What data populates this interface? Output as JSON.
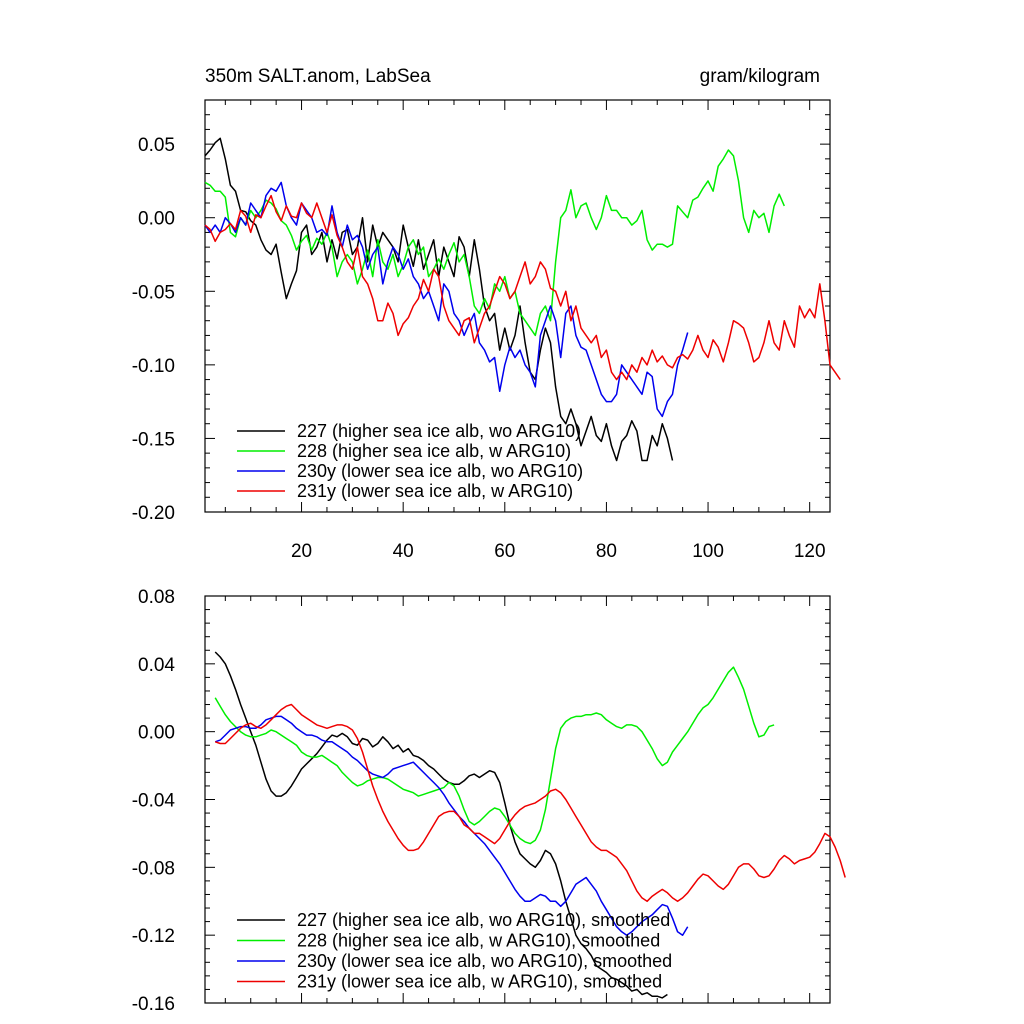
{
  "colors": {
    "227": "#000000",
    "228": "#00ee00",
    "230y": "#0000ee",
    "231y": "#ee0000"
  },
  "chart_data": [
    {
      "type": "line",
      "title_left": "350m SALT.anom, LabSea",
      "title_right": "gram/kilogram",
      "xlim": [
        1,
        124
      ],
      "ylim": [
        -0.2,
        0.08
      ],
      "xticks": [
        20,
        40,
        60,
        80,
        100,
        120
      ],
      "xticklabels": [
        "20",
        "40",
        "60",
        "80",
        "100",
        "120"
      ],
      "yticks": [
        -0.2,
        -0.15,
        -0.1,
        -0.05,
        0.0,
        0.05
      ],
      "yticklabels": [
        "-0.20",
        "-0.15",
        "-0.10",
        "-0.05",
        "0.00",
        "0.05"
      ],
      "legend": [
        "227 (higher sea ice alb, wo ARG10)",
        "228 (higher sea ice alb, w ARG10)",
        "230y (lower sea ice alb, wo ARG10)",
        "231y (lower sea ice alb, w ARG10)"
      ],
      "series": [
        {
          "name": "227",
          "x_start": 1,
          "values": [
            0.042,
            0.046,
            0.051,
            0.054,
            0.04,
            0.022,
            0.018,
            0.005,
            0.004,
            -0.002,
            -0.005,
            -0.015,
            -0.022,
            -0.025,
            -0.018,
            -0.037,
            -0.055,
            -0.045,
            -0.036,
            -0.01,
            -0.005,
            -0.025,
            -0.02,
            -0.01,
            -0.03,
            -0.015,
            -0.028,
            -0.01,
            -0.008,
            -0.025,
            -0.02,
            0.0,
            -0.03,
            -0.005,
            -0.02,
            -0.01,
            -0.015,
            -0.02,
            -0.03,
            -0.005,
            -0.02,
            -0.033,
            -0.015,
            -0.035,
            -0.025,
            -0.015,
            -0.04,
            -0.02,
            -0.03,
            -0.04,
            -0.013,
            -0.02,
            -0.04,
            -0.015,
            -0.035,
            -0.06,
            -0.07,
            -0.065,
            -0.09,
            -0.075,
            -0.09,
            -0.08,
            -0.06,
            -0.085,
            -0.105,
            -0.11,
            -0.09,
            -0.075,
            -0.085,
            -0.115,
            -0.135,
            -0.14,
            -0.13,
            -0.14,
            -0.155,
            -0.145,
            -0.135,
            -0.148,
            -0.152,
            -0.14,
            -0.155,
            -0.165,
            -0.152,
            -0.148,
            -0.138,
            -0.145,
            -0.165,
            -0.165,
            -0.148,
            -0.155,
            -0.14,
            -0.15,
            -0.165
          ]
        },
        {
          "name": "228",
          "x_start": 1,
          "values": [
            0.024,
            0.022,
            0.018,
            0.018,
            0.014,
            -0.01,
            -0.013,
            0.0,
            -0.005,
            0.005,
            0.0,
            0.005,
            0.012,
            0.01,
            0.006,
            -0.002,
            -0.005,
            -0.012,
            -0.022,
            -0.016,
            -0.012,
            -0.022,
            -0.014,
            -0.018,
            -0.01,
            -0.02,
            -0.04,
            -0.03,
            -0.025,
            -0.03,
            -0.045,
            -0.035,
            -0.022,
            -0.04,
            -0.015,
            -0.03,
            -0.035,
            -0.025,
            -0.04,
            -0.032,
            -0.02,
            -0.015,
            -0.025,
            -0.02,
            -0.04,
            -0.035,
            -0.028,
            -0.035,
            -0.025,
            -0.017,
            -0.03,
            -0.025,
            -0.04,
            -0.06,
            -0.065,
            -0.055,
            -0.062,
            -0.045,
            -0.05,
            -0.04,
            -0.055,
            -0.05,
            -0.065,
            -0.07,
            -0.075,
            -0.08,
            -0.065,
            -0.06,
            -0.07,
            -0.03,
            0.0,
            0.005,
            0.019,
            0.0,
            0.008,
            0.01,
            0.0,
            -0.008,
            0.0,
            0.015,
            0.005,
            0.005,
            0.0,
            0.0,
            -0.005,
            -0.002,
            0.005,
            -0.015,
            -0.022,
            -0.018,
            -0.018,
            -0.02,
            -0.018,
            0.008,
            0.004,
            0.0,
            0.012,
            0.014,
            0.02,
            0.025,
            0.018,
            0.035,
            0.04,
            0.046,
            0.042,
            0.025,
            0.0,
            -0.01,
            0.005,
            0.0,
            0.003,
            -0.01,
            0.008,
            0.016,
            0.008
          ]
        },
        {
          "name": "230y",
          "x_start": 1,
          "values": [
            -0.005,
            -0.01,
            -0.005,
            -0.01,
            0.0,
            -0.004,
            -0.01,
            0.0,
            -0.005,
            0.01,
            0.005,
            0.0,
            0.015,
            0.02,
            0.018,
            0.024,
            0.008,
            0.0,
            -0.005,
            0.01,
            0.005,
            0.0,
            -0.01,
            -0.008,
            -0.012,
            0.008,
            -0.01,
            -0.02,
            -0.005,
            -0.015,
            -0.012,
            -0.02,
            -0.035,
            -0.025,
            -0.02,
            -0.045,
            -0.03,
            -0.02,
            -0.025,
            -0.035,
            -0.028,
            -0.04,
            -0.045,
            -0.055,
            -0.05,
            -0.06,
            -0.07,
            -0.045,
            -0.05,
            -0.065,
            -0.07,
            -0.08,
            -0.072,
            -0.065,
            -0.085,
            -0.09,
            -0.098,
            -0.095,
            -0.118,
            -0.1,
            -0.088,
            -0.095,
            -0.09,
            -0.1,
            -0.105,
            -0.115,
            -0.08,
            -0.07,
            -0.06,
            -0.07,
            -0.095,
            -0.065,
            -0.06,
            -0.08,
            -0.088,
            -0.09,
            -0.1,
            -0.11,
            -0.12,
            -0.125,
            -0.125,
            -0.12,
            -0.1,
            -0.105,
            -0.11,
            -0.115,
            -0.12,
            -0.105,
            -0.108,
            -0.13,
            -0.135,
            -0.125,
            -0.12,
            -0.1,
            -0.09,
            -0.078
          ]
        },
        {
          "name": "231y",
          "x_start": 1,
          "values": [
            -0.005,
            -0.008,
            -0.016,
            -0.01,
            -0.008,
            -0.004,
            -0.008,
            0.005,
            0.001,
            -0.01,
            0.002,
            0.0,
            0.008,
            0.015,
            0.004,
            -0.002,
            0.008,
            0.001,
            0.0,
            0.01,
            0.003,
            0.0,
            0.01,
            0.0,
            -0.01,
            0.002,
            -0.012,
            -0.02,
            -0.03,
            -0.035,
            -0.02,
            -0.04,
            -0.045,
            -0.055,
            -0.07,
            -0.07,
            -0.058,
            -0.065,
            -0.08,
            -0.072,
            -0.068,
            -0.06,
            -0.055,
            -0.042,
            -0.05,
            -0.035,
            -0.04,
            -0.06,
            -0.07,
            -0.075,
            -0.08,
            -0.07,
            -0.068,
            -0.085,
            -0.075,
            -0.065,
            -0.06,
            -0.05,
            -0.04,
            -0.045,
            -0.055,
            -0.05,
            -0.04,
            -0.03,
            -0.045,
            -0.04,
            -0.03,
            -0.035,
            -0.048,
            -0.05,
            -0.06,
            -0.05,
            -0.07,
            -0.06,
            -0.075,
            -0.08,
            -0.085,
            -0.08,
            -0.095,
            -0.09,
            -0.105,
            -0.11,
            -0.105,
            -0.11,
            -0.1,
            -0.105,
            -0.095,
            -0.1,
            -0.09,
            -0.098,
            -0.094,
            -0.1,
            -0.102,
            -0.095,
            -0.093,
            -0.096,
            -0.09,
            -0.08,
            -0.09,
            -0.095,
            -0.083,
            -0.088,
            -0.098,
            -0.085,
            -0.07,
            -0.072,
            -0.075,
            -0.085,
            -0.098,
            -0.095,
            -0.085,
            -0.07,
            -0.085,
            -0.09,
            -0.07,
            -0.08,
            -0.088,
            -0.06,
            -0.068,
            -0.062,
            -0.068,
            -0.045,
            -0.07,
            -0.1,
            -0.105,
            -0.11
          ]
        }
      ]
    },
    {
      "type": "line",
      "xlim": [
        1,
        124
      ],
      "ylim": [
        -0.16,
        0.08
      ],
      "yticks": [
        -0.16,
        -0.12,
        -0.08,
        -0.04,
        0.0,
        0.04,
        0.08
      ],
      "yticklabels": [
        "-0.16",
        "-0.12",
        "-0.08",
        "-0.04",
        "0.00",
        "0.04",
        "0.08"
      ],
      "legend": [
        "227 (higher sea ice alb, wo ARG10), smoothed",
        "228 (higher sea ice alb, w ARG10), smoothed",
        "230y (lower sea ice alb, wo ARG10), smoothed",
        "231y (lower sea ice alb, w ARG10), smoothed"
      ],
      "series": [
        {
          "name": "227",
          "x_start": 3,
          "values": [
            0.047,
            0.044,
            0.04,
            0.033,
            0.025,
            0.016,
            0.008,
            0.0,
            -0.008,
            -0.018,
            -0.028,
            -0.035,
            -0.038,
            -0.038,
            -0.036,
            -0.032,
            -0.027,
            -0.022,
            -0.019,
            -0.016,
            -0.013,
            -0.009,
            -0.005,
            -0.002,
            -0.003,
            -0.001,
            -0.003,
            -0.007,
            -0.008,
            -0.004,
            -0.005,
            -0.009,
            -0.007,
            -0.003,
            -0.006,
            -0.01,
            -0.008,
            -0.012,
            -0.01,
            -0.014,
            -0.015,
            -0.017,
            -0.02,
            -0.022,
            -0.025,
            -0.028,
            -0.03,
            -0.031,
            -0.031,
            -0.029,
            -0.026,
            -0.025,
            -0.027,
            -0.025,
            -0.023,
            -0.024,
            -0.03,
            -0.042,
            -0.055,
            -0.065,
            -0.072,
            -0.075,
            -0.078,
            -0.08,
            -0.076,
            -0.07,
            -0.072,
            -0.078,
            -0.088,
            -0.1,
            -0.11,
            -0.12,
            -0.125,
            -0.128,
            -0.132,
            -0.138,
            -0.14,
            -0.142,
            -0.145,
            -0.146,
            -0.148,
            -0.15,
            -0.153,
            -0.152,
            -0.155,
            -0.154,
            -0.156,
            -0.156,
            -0.157,
            -0.155
          ]
        },
        {
          "name": "228",
          "x_start": 3,
          "values": [
            0.02,
            0.015,
            0.01,
            0.006,
            0.003,
            0.0,
            -0.002,
            -0.003,
            -0.003,
            -0.002,
            -0.001,
            0.001,
            0.0,
            -0.002,
            -0.004,
            -0.006,
            -0.008,
            -0.012,
            -0.014,
            -0.015,
            -0.015,
            -0.014,
            -0.016,
            -0.018,
            -0.02,
            -0.024,
            -0.027,
            -0.03,
            -0.032,
            -0.031,
            -0.029,
            -0.028,
            -0.027,
            -0.027,
            -0.028,
            -0.03,
            -0.032,
            -0.034,
            -0.035,
            -0.036,
            -0.038,
            -0.037,
            -0.036,
            -0.035,
            -0.034,
            -0.033,
            -0.03,
            -0.032,
            -0.038,
            -0.046,
            -0.053,
            -0.055,
            -0.053,
            -0.05,
            -0.047,
            -0.045,
            -0.046,
            -0.05,
            -0.055,
            -0.06,
            -0.063,
            -0.065,
            -0.066,
            -0.064,
            -0.058,
            -0.046,
            -0.028,
            -0.01,
            0.002,
            0.006,
            0.008,
            0.009,
            0.009,
            0.01,
            0.01,
            0.011,
            0.01,
            0.007,
            0.005,
            0.003,
            0.002,
            0.004,
            0.004,
            0.003,
            0.0,
            -0.005,
            -0.01,
            -0.016,
            -0.02,
            -0.018,
            -0.012,
            -0.008,
            -0.004,
            0.0,
            0.005,
            0.01,
            0.014,
            0.016,
            0.02,
            0.025,
            0.03,
            0.035,
            0.038,
            0.032,
            0.025,
            0.015,
            0.005,
            -0.003,
            -0.002,
            0.003,
            0.004
          ]
        },
        {
          "name": "230y",
          "x_start": 3,
          "values": [
            -0.006,
            -0.005,
            -0.002,
            0.001,
            0.002,
            0.003,
            0.003,
            0.002,
            0.002,
            0.004,
            0.007,
            0.008,
            0.009,
            0.009,
            0.007,
            0.005,
            0.002,
            0.0,
            -0.002,
            -0.002,
            -0.003,
            -0.005,
            -0.006,
            -0.006,
            -0.008,
            -0.01,
            -0.012,
            -0.015,
            -0.017,
            -0.02,
            -0.023,
            -0.025,
            -0.026,
            -0.027,
            -0.025,
            -0.022,
            -0.021,
            -0.02,
            -0.019,
            -0.018,
            -0.021,
            -0.024,
            -0.027,
            -0.03,
            -0.033,
            -0.037,
            -0.042,
            -0.046,
            -0.05,
            -0.053,
            -0.057,
            -0.06,
            -0.063,
            -0.066,
            -0.07,
            -0.074,
            -0.078,
            -0.083,
            -0.088,
            -0.093,
            -0.097,
            -0.1,
            -0.1,
            -0.098,
            -0.096,
            -0.097,
            -0.1,
            -0.1,
            -0.103,
            -0.1,
            -0.095,
            -0.09,
            -0.088,
            -0.086,
            -0.09,
            -0.094,
            -0.1,
            -0.105,
            -0.11,
            -0.115,
            -0.118,
            -0.12,
            -0.118,
            -0.115,
            -0.112,
            -0.11,
            -0.108,
            -0.105,
            -0.102,
            -0.103,
            -0.11,
            -0.118,
            -0.12,
            -0.115
          ]
        },
        {
          "name": "231y",
          "x_start": 3,
          "values": [
            -0.006,
            -0.007,
            -0.007,
            -0.004,
            -0.001,
            0.002,
            0.004,
            0.005,
            0.003,
            0.002,
            0.004,
            0.007,
            0.01,
            0.013,
            0.015,
            0.016,
            0.013,
            0.01,
            0.008,
            0.006,
            0.004,
            0.003,
            0.002,
            0.003,
            0.004,
            0.004,
            0.003,
            0.001,
            -0.004,
            -0.012,
            -0.022,
            -0.032,
            -0.04,
            -0.047,
            -0.053,
            -0.058,
            -0.063,
            -0.067,
            -0.07,
            -0.07,
            -0.069,
            -0.065,
            -0.06,
            -0.055,
            -0.05,
            -0.048,
            -0.047,
            -0.047,
            -0.05,
            -0.055,
            -0.057,
            -0.06,
            -0.06,
            -0.062,
            -0.064,
            -0.066,
            -0.063,
            -0.058,
            -0.053,
            -0.049,
            -0.046,
            -0.044,
            -0.043,
            -0.042,
            -0.04,
            -0.038,
            -0.035,
            -0.034,
            -0.036,
            -0.04,
            -0.045,
            -0.05,
            -0.055,
            -0.06,
            -0.065,
            -0.068,
            -0.07,
            -0.07,
            -0.072,
            -0.074,
            -0.078,
            -0.082,
            -0.088,
            -0.094,
            -0.098,
            -0.1,
            -0.097,
            -0.095,
            -0.093,
            -0.095,
            -0.098,
            -0.1,
            -0.098,
            -0.095,
            -0.091,
            -0.087,
            -0.084,
            -0.085,
            -0.088,
            -0.091,
            -0.093,
            -0.09,
            -0.085,
            -0.08,
            -0.078,
            -0.078,
            -0.081,
            -0.085,
            -0.086,
            -0.085,
            -0.081,
            -0.076,
            -0.073,
            -0.075,
            -0.078,
            -0.076,
            -0.075,
            -0.074,
            -0.071,
            -0.066,
            -0.06,
            -0.062,
            -0.068,
            -0.076,
            -0.086
          ]
        }
      ]
    }
  ]
}
